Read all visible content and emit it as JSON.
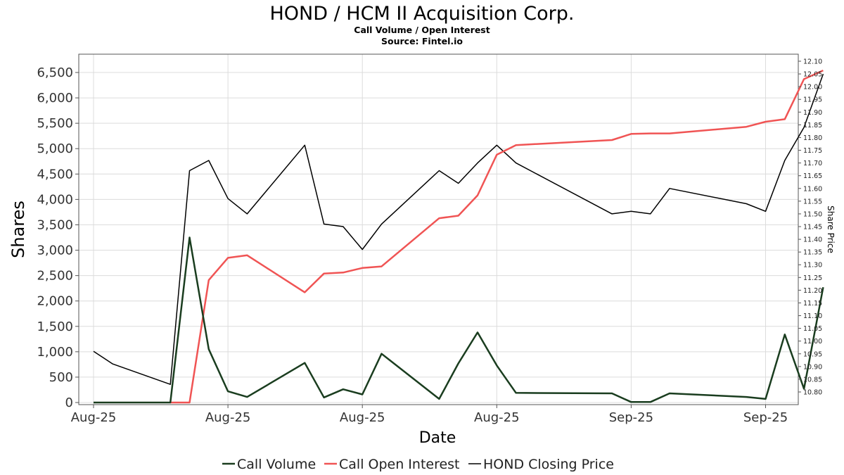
{
  "chart_data": {
    "type": "line",
    "title": "HOND / HCM II Acquisition Corp.",
    "subtitle": "Call Volume / Open Interest",
    "source": "Source: Fintel.io",
    "xlabel": "Date",
    "ylabel": "Shares",
    "y2label": "Share Price",
    "ylim": [
      0,
      6700
    ],
    "y2lim": [
      10.765,
      12.115
    ],
    "grid": true,
    "legend_position": "bottom",
    "y_ticks": [
      "0",
      "500",
      "1,000",
      "1,500",
      "2,000",
      "2,500",
      "3,000",
      "3,500",
      "4,000",
      "4,500",
      "5,000",
      "5,500",
      "6,000",
      "6,500"
    ],
    "y2_ticks": [
      "10.80",
      "10.85",
      "10.90",
      "10.95",
      "11.00",
      "11.05",
      "11.10",
      "11.15",
      "11.20",
      "11.25",
      "11.30",
      "11.35",
      "11.40",
      "11.45",
      "11.50",
      "11.55",
      "11.60",
      "11.65",
      "11.70",
      "11.75",
      "11.80",
      "11.85",
      "11.90",
      "11.95",
      "12.00",
      "12.05",
      "12.10"
    ],
    "x_ticks": [
      "Aug-25",
      "Aug-25",
      "Aug-25",
      "Aug-25",
      "Sep-25",
      "Sep-25"
    ],
    "series": [
      {
        "name": "Call Volume",
        "axis": "left",
        "color": "#1a3d1f",
        "points": [
          [
            0,
            0
          ],
          [
            1,
            0
          ],
          [
            4,
            0
          ],
          [
            5,
            3250
          ],
          [
            6,
            1050
          ],
          [
            7,
            220
          ],
          [
            8,
            110
          ],
          [
            11,
            780
          ],
          [
            12,
            100
          ],
          [
            13,
            260
          ],
          [
            14,
            160
          ],
          [
            15,
            960
          ],
          [
            18,
            70
          ],
          [
            19,
            770
          ],
          [
            20,
            1380
          ],
          [
            21,
            730
          ],
          [
            22,
            190
          ],
          [
            27,
            180
          ],
          [
            28,
            10
          ],
          [
            29,
            10
          ],
          [
            30,
            180
          ],
          [
            34,
            110
          ],
          [
            35,
            70
          ],
          [
            36,
            1340
          ],
          [
            37,
            270
          ],
          [
            38,
            2270
          ]
        ]
      },
      {
        "name": "Call Open Interest",
        "axis": "left",
        "color": "#f05454",
        "points": [
          [
            4,
            0
          ],
          [
            5,
            0
          ],
          [
            6,
            2410
          ],
          [
            7,
            2850
          ],
          [
            8,
            2900
          ],
          [
            11,
            2170
          ],
          [
            12,
            2540
          ],
          [
            13,
            2560
          ],
          [
            14,
            2650
          ],
          [
            15,
            2680
          ],
          [
            18,
            3630
          ],
          [
            19,
            3680
          ],
          [
            20,
            4080
          ],
          [
            21,
            4880
          ],
          [
            22,
            5070
          ],
          [
            27,
            5170
          ],
          [
            28,
            5290
          ],
          [
            29,
            5300
          ],
          [
            30,
            5300
          ],
          [
            34,
            5430
          ],
          [
            35,
            5530
          ],
          [
            36,
            5580
          ],
          [
            37,
            6370
          ],
          [
            38,
            6540
          ]
        ]
      },
      {
        "name": "HOND Closing Price",
        "axis": "right",
        "color": "#000000",
        "points": [
          [
            0,
            10.96
          ],
          [
            1,
            10.91
          ],
          [
            4,
            10.83
          ],
          [
            5,
            11.67
          ],
          [
            6,
            11.71
          ],
          [
            7,
            11.56
          ],
          [
            8,
            11.5
          ],
          [
            11,
            11.77
          ],
          [
            12,
            11.46
          ],
          [
            13,
            11.45
          ],
          [
            14,
            11.36
          ],
          [
            15,
            11.46
          ],
          [
            18,
            11.67
          ],
          [
            19,
            11.62
          ],
          [
            20,
            11.7
          ],
          [
            21,
            11.77
          ],
          [
            22,
            11.7
          ],
          [
            27,
            11.5
          ],
          [
            28,
            11.51
          ],
          [
            29,
            11.5
          ],
          [
            30,
            11.6
          ],
          [
            34,
            11.54
          ],
          [
            35,
            11.51
          ],
          [
            36,
            11.71
          ],
          [
            37,
            11.84
          ],
          [
            38,
            12.05
          ]
        ]
      }
    ]
  }
}
